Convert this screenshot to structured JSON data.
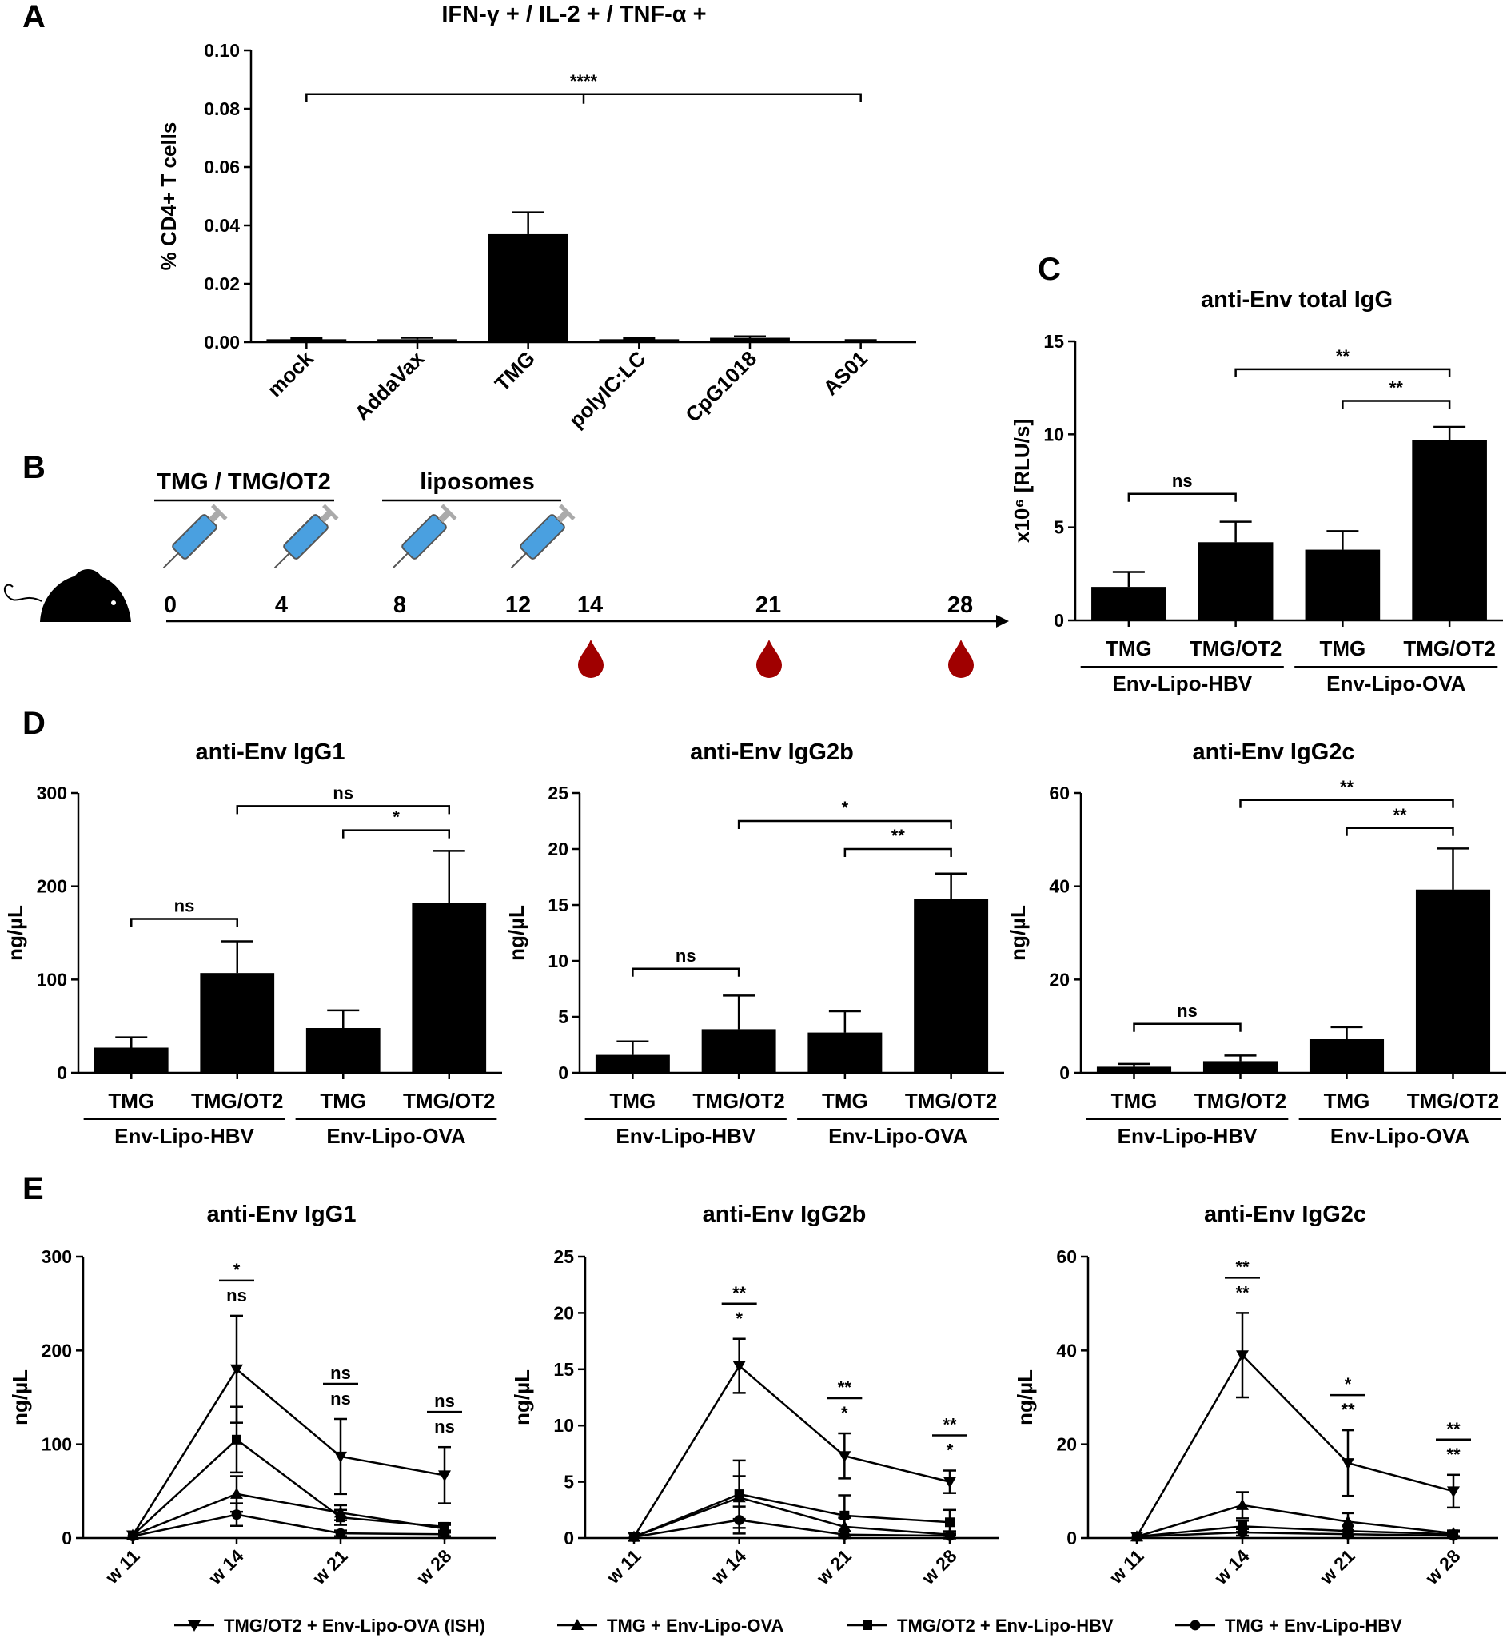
{
  "colors": {
    "bar": "#000000",
    "axis": "#000000",
    "drop": "#a00000",
    "syringe": "#4aa0e0"
  },
  "panelA": {
    "label": "A",
    "chart_data": {
      "type": "bar",
      "title": "IFN-γ + / IL-2 + / TNF-α +",
      "ylabel": "% CD4+ T cells",
      "categories": [
        "mock",
        "AddaVax",
        "TMG",
        "polyIC:LC",
        "CpG1018",
        "AS01"
      ],
      "values": [
        0.001,
        0.001,
        0.037,
        0.001,
        0.0015,
        0.0005
      ],
      "errors": [
        0.0003,
        0.0005,
        0.0075,
        0.0003,
        0.0005,
        0.0002
      ],
      "ylim": [
        0,
        0.1
      ],
      "yticks": [
        "0.00",
        "0.02",
        "0.04",
        "0.06",
        "0.08",
        "0.10"
      ],
      "significance": [
        {
          "label": "****",
          "from": 0,
          "to": 5,
          "y": 0.085
        }
      ]
    }
  },
  "panelB": {
    "label": "B",
    "groups": [
      "TMG / TMG/OT2",
      "liposomes"
    ],
    "days": [
      "0",
      "4",
      "8",
      "12",
      "14",
      "21",
      "28"
    ]
  },
  "panelC": {
    "label": "C",
    "chart_data": {
      "type": "bar",
      "title": "anti-Env total IgG",
      "ylabel": "x10⁶ [RLU/s]",
      "categories": [
        "TMG",
        "TMG/OT2",
        "TMG",
        "TMG/OT2"
      ],
      "groups": [
        "Env-Lipo-HBV",
        "Env-Lipo-OVA"
      ],
      "values": [
        1.8,
        4.2,
        3.8,
        9.7
      ],
      "errors": [
        0.8,
        1.1,
        1.0,
        0.7
      ],
      "ylim": [
        0,
        15
      ],
      "yticks": [
        "0",
        "5",
        "10",
        "15"
      ],
      "significance": [
        {
          "label": "ns",
          "from": 0,
          "to": 1,
          "y": 6.8
        },
        {
          "label": "**",
          "from": 1,
          "to": 3,
          "y": 13.5
        },
        {
          "label": "**",
          "from": 2,
          "to": 3,
          "y": 11.8
        }
      ]
    }
  },
  "panelD": {
    "label": "D",
    "chart_data": [
      {
        "type": "bar",
        "title": "anti-Env IgG1",
        "ylabel": "ng/µL",
        "categories": [
          "TMG",
          "TMG/OT2",
          "TMG",
          "TMG/OT2"
        ],
        "groups": [
          "Env-Lipo-HBV",
          "Env-Lipo-OVA"
        ],
        "values": [
          27,
          107,
          48,
          182
        ],
        "errors": [
          11,
          34,
          19,
          56
        ],
        "ylim": [
          0,
          300
        ],
        "yticks": [
          "0",
          "100",
          "200",
          "300"
        ],
        "significance": [
          {
            "label": "ns",
            "from": 0,
            "to": 1,
            "y": 165
          },
          {
            "label": "ns",
            "from": 1,
            "to": 3,
            "y": 286
          },
          {
            "label": "*",
            "from": 2,
            "to": 3,
            "y": 260
          }
        ]
      },
      {
        "type": "bar",
        "title": "anti-Env IgG2b",
        "ylabel": "ng/µL",
        "categories": [
          "TMG",
          "TMG/OT2",
          "TMG",
          "TMG/OT2"
        ],
        "groups": [
          "Env-Lipo-HBV",
          "Env-Lipo-OVA"
        ],
        "values": [
          1.6,
          3.9,
          3.6,
          15.5
        ],
        "errors": [
          1.2,
          3.0,
          1.9,
          2.3
        ],
        "ylim": [
          0,
          25
        ],
        "yticks": [
          "0",
          "5",
          "10",
          "15",
          "20",
          "25"
        ],
        "significance": [
          {
            "label": "ns",
            "from": 0,
            "to": 1,
            "y": 9.3
          },
          {
            "label": "*",
            "from": 1,
            "to": 3,
            "y": 22.5
          },
          {
            "label": "**",
            "from": 2,
            "to": 3,
            "y": 20.0
          }
        ]
      },
      {
        "type": "bar",
        "title": "anti-Env IgG2c",
        "ylabel": "ng/µL",
        "categories": [
          "TMG",
          "TMG/OT2",
          "TMG",
          "TMG/OT2"
        ],
        "groups": [
          "Env-Lipo-HBV",
          "Env-Lipo-OVA"
        ],
        "values": [
          1.3,
          2.5,
          7.2,
          39.3
        ],
        "errors": [
          0.6,
          1.2,
          2.6,
          8.8
        ],
        "ylim": [
          0,
          60
        ],
        "yticks": [
          "0",
          "20",
          "40",
          "60"
        ],
        "significance": [
          {
            "label": "ns",
            "from": 0,
            "to": 1,
            "y": 10.5
          },
          {
            "label": "**",
            "from": 1,
            "to": 3,
            "y": 58.5
          },
          {
            "label": "**",
            "from": 2,
            "to": 3,
            "y": 52.5
          }
        ]
      }
    ]
  },
  "panelE": {
    "label": "E",
    "chart_data": [
      {
        "type": "line",
        "title": "anti-Env IgG1",
        "ylabel": "ng/µL",
        "x": [
          "w 11",
          "w 14",
          "w 21",
          "w 28"
        ],
        "ylim": [
          0,
          300
        ],
        "yticks": [
          "0",
          "100",
          "200",
          "300"
        ],
        "series": [
          {
            "name": "TMG/OT2 + Env-Lipo-OVA (ISH)",
            "marker": "tri-down",
            "values": [
              3,
              180,
              87,
              67
            ],
            "errors": [
              1,
              57,
              40,
              30
            ]
          },
          {
            "name": "TMG + Env-Lipo-OVA",
            "marker": "tri-up",
            "values": [
              3,
              47,
              27,
              10
            ],
            "errors": [
              1,
              19,
              8,
              4
            ]
          },
          {
            "name": "TMG/OT2 + Env-Lipo-HBV",
            "marker": "square",
            "values": [
              3,
              105,
              22,
              12
            ],
            "errors": [
              1,
              35,
              8,
              4
            ]
          },
          {
            "name": "TMG + Env-Lipo-HBV",
            "marker": "circle",
            "values": [
              2,
              25,
              5,
              4
            ],
            "errors": [
              1,
              12,
              3,
              2
            ]
          }
        ],
        "annotations": [
          {
            "x": 1,
            "labels": [
              "*",
              "ns"
            ]
          },
          {
            "x": 2,
            "labels": [
              "ns",
              "ns"
            ]
          },
          {
            "x": 3,
            "labels": [
              "ns",
              "ns"
            ]
          }
        ]
      },
      {
        "type": "line",
        "title": "anti-Env IgG2b",
        "ylabel": "ng/µL",
        "x": [
          "w 11",
          "w 14",
          "w 21",
          "w 28"
        ],
        "ylim": [
          0,
          25
        ],
        "yticks": [
          "0",
          "5",
          "10",
          "15",
          "20",
          "25"
        ],
        "series": [
          {
            "name": "TMG/OT2 + Env-Lipo-OVA (ISH)",
            "marker": "tri-down",
            "values": [
              0.1,
              15.3,
              7.3,
              5.0
            ],
            "errors": [
              0.05,
              2.4,
              2.0,
              1.0
            ]
          },
          {
            "name": "TMG + Env-Lipo-OVA",
            "marker": "tri-up",
            "values": [
              0.1,
              3.6,
              1.0,
              0.3
            ],
            "errors": [
              0.05,
              1.9,
              0.8,
              0.3
            ]
          },
          {
            "name": "TMG/OT2 + Env-Lipo-HBV",
            "marker": "square",
            "values": [
              0.1,
              3.9,
              2.0,
              1.4
            ],
            "errors": [
              0.05,
              3.0,
              1.8,
              1.1
            ]
          },
          {
            "name": "TMG + Env-Lipo-HBV",
            "marker": "circle",
            "values": [
              0.1,
              1.6,
              0.3,
              0.2
            ],
            "errors": [
              0.05,
              1.2,
              0.3,
              0.2
            ]
          }
        ],
        "annotations": [
          {
            "x": 1,
            "labels": [
              "**",
              "*"
            ]
          },
          {
            "x": 2,
            "labels": [
              "**",
              "*"
            ]
          },
          {
            "x": 3,
            "labels": [
              "**",
              "*"
            ]
          }
        ]
      },
      {
        "type": "line",
        "title": "anti-Env IgG2c",
        "ylabel": "ng/µL",
        "x": [
          "w 11",
          "w 14",
          "w 21",
          "w 28"
        ],
        "ylim": [
          0,
          60
        ],
        "yticks": [
          "0",
          "20",
          "40",
          "60"
        ],
        "series": [
          {
            "name": "TMG/OT2 + Env-Lipo-OVA (ISH)",
            "marker": "tri-down",
            "values": [
              0.3,
              39,
              16,
              10
            ],
            "errors": [
              0.2,
              9,
              7,
              3.5
            ]
          },
          {
            "name": "TMG + Env-Lipo-OVA",
            "marker": "tri-up",
            "values": [
              0.3,
              7,
              3.5,
              1.0
            ],
            "errors": [
              0.2,
              2.8,
              1.8,
              0.6
            ]
          },
          {
            "name": "TMG/OT2 + Env-Lipo-HBV",
            "marker": "square",
            "values": [
              0.3,
              2.5,
              1.5,
              0.8
            ],
            "errors": [
              0.2,
              1.2,
              1.0,
              0.5
            ]
          },
          {
            "name": "TMG + Env-Lipo-HBV",
            "marker": "circle",
            "values": [
              0.3,
              1.2,
              0.8,
              0.5
            ],
            "errors": [
              0.2,
              0.7,
              0.5,
              0.3
            ]
          }
        ],
        "annotations": [
          {
            "x": 1,
            "labels": [
              "**",
              "**"
            ]
          },
          {
            "x": 2,
            "labels": [
              "*",
              "**"
            ]
          },
          {
            "x": 3,
            "labels": [
              "**",
              "**"
            ]
          }
        ]
      }
    ],
    "legend": [
      {
        "label": "TMG/OT2 + Env-Lipo-OVA (ISH)",
        "marker": "tri-down"
      },
      {
        "label": "TMG + Env-Lipo-OVA",
        "marker": "tri-up"
      },
      {
        "label": "TMG/OT2 + Env-Lipo-HBV",
        "marker": "square"
      },
      {
        "label": "TMG + Env-Lipo-HBV",
        "marker": "circle"
      }
    ]
  }
}
